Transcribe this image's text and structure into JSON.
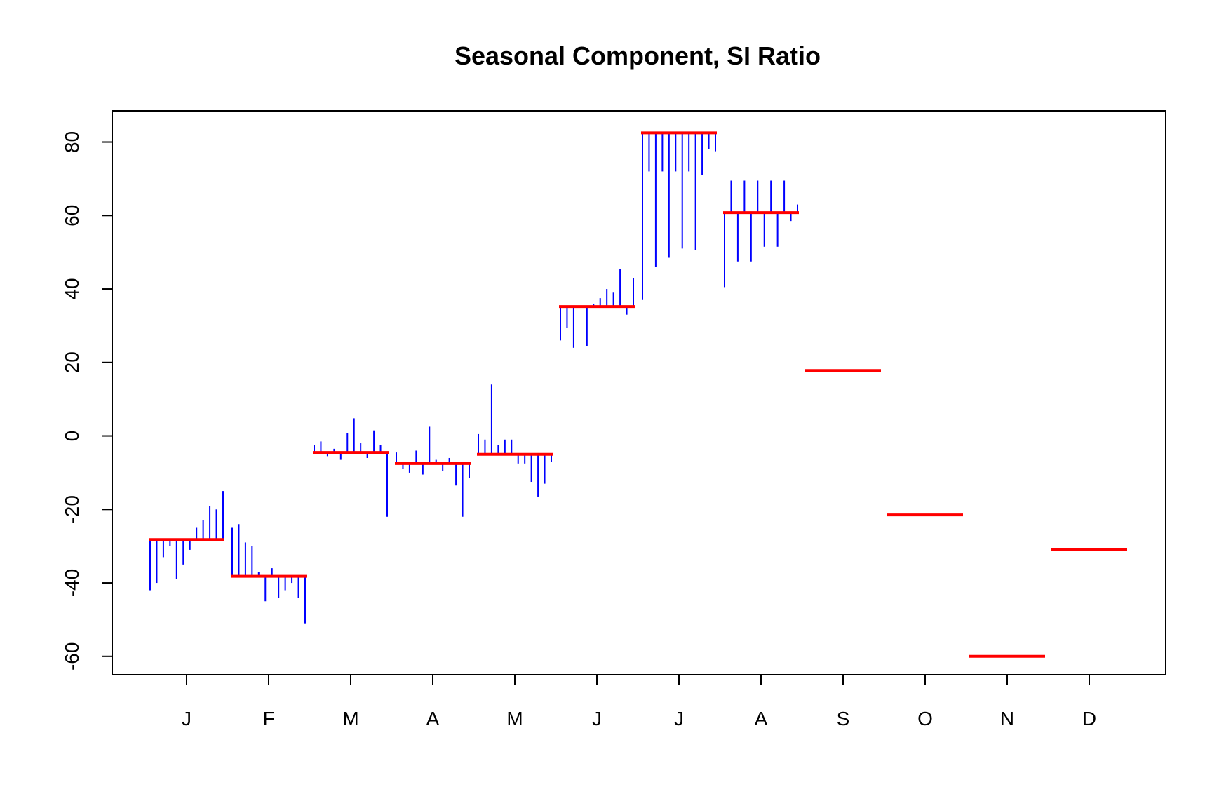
{
  "chart_data": {
    "type": "bar",
    "title": "Seasonal Component, SI Ratio",
    "xlabel": "",
    "ylabel": "",
    "ylim": [
      -65,
      88.5
    ],
    "y_ticks": [
      -60,
      -40,
      -20,
      0,
      20,
      40,
      60,
      80
    ],
    "categories": [
      "J",
      "F",
      "M",
      "A",
      "M",
      "J",
      "J",
      "A",
      "S",
      "O",
      "N",
      "D"
    ],
    "colors": {
      "si_ratio": "#0000ff",
      "seasonal_mean": "#ff0000"
    },
    "grid": false,
    "legend": "none",
    "series": [
      {
        "values": [
          -28.2,
          -38.2,
          -4.5,
          -7.5,
          -5.0,
          35.2,
          82.5,
          60.8,
          17.8,
          -21.5,
          -60.0,
          -31.0
        ]
      },
      {
        "values": [
          [
            -42,
            -40,
            -33,
            -30,
            -39,
            -35,
            -31,
            -25,
            -23,
            -19,
            -20,
            -15
          ],
          [
            -25,
            -24,
            -29,
            -30,
            -37,
            -45,
            -36,
            -44,
            -42,
            -40,
            -44,
            -51
          ],
          [
            -2.5,
            -1.5,
            -5.5,
            -3.5,
            -6.5,
            0.8,
            4.8,
            -2.0,
            -6.0,
            1.5,
            -2.5,
            -22.0
          ],
          [
            -4.5,
            -9.0,
            -10.0,
            -4.0,
            -10.5,
            2.5,
            -6.5,
            -9.5,
            -6.0,
            -13.5,
            -22.0,
            -11.5
          ],
          [
            0.5,
            -1.0,
            14.0,
            -2.5,
            -1.0,
            -1.0,
            -7.5,
            -7.5,
            -12.5,
            -16.5,
            -13.0,
            -7.0
          ],
          [
            26,
            29.5,
            24,
            35.5,
            24.5,
            36,
            37.5,
            40,
            39,
            45.5,
            33,
            43
          ],
          [
            37,
            72,
            46,
            72,
            48.5,
            72,
            51,
            72,
            50.5,
            71,
            78,
            77.5
          ],
          [
            40.5,
            69.5,
            47.5,
            69.5,
            47.5,
            69.5,
            51.5,
            69.5,
            51.5,
            69.5,
            58.5,
            63
          ]
        ]
      }
    ]
  }
}
